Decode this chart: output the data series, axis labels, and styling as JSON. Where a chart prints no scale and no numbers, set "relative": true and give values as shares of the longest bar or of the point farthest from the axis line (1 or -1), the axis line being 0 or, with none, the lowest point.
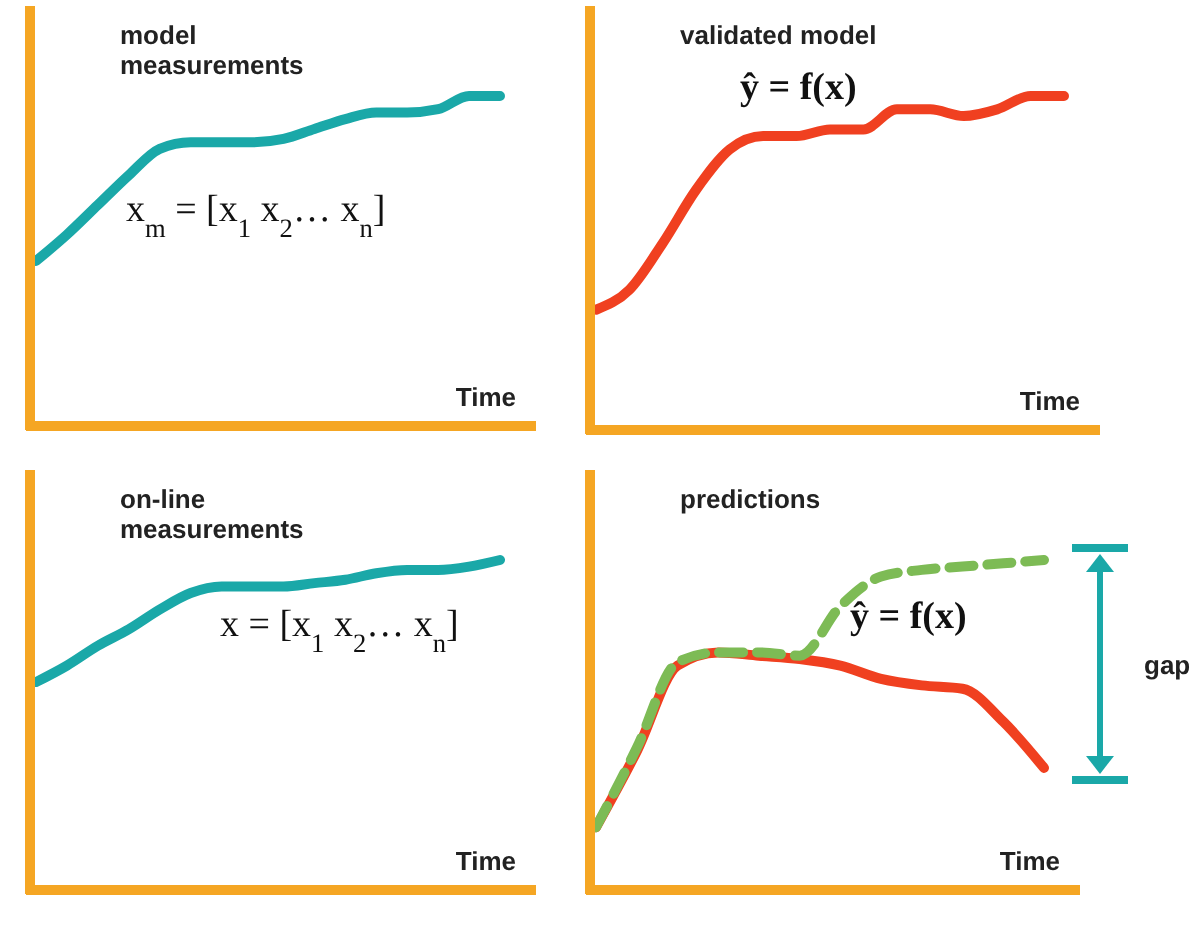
{
  "chart_data": [
    {
      "type": "line",
      "title": "model measurements",
      "xlabel": "Time",
      "relative": true,
      "categories": [
        null,
        null,
        null,
        null,
        null,
        null,
        null,
        null,
        null,
        null,
        null,
        null,
        null,
        null,
        null,
        null
      ],
      "series": [
        {
          "color": "#1aa8a8",
          "line_style": "solid",
          "values": [
            0.5,
            0.58,
            0.67,
            0.76,
            0.84,
            0.86,
            0.86,
            0.86,
            0.87,
            0.9,
            0.93,
            0.95,
            0.95,
            0.96,
            1,
            1
          ]
        }
      ],
      "annotations": [
        "x$_{m}$ = [x$_{1}$  x$_{2}$… x$_{n}$]"
      ]
    },
    {
      "type": "line",
      "title": "validated model",
      "xlabel": "Time",
      "relative": true,
      "categories": [
        null,
        null,
        null,
        null,
        null,
        null,
        null,
        null,
        null,
        null,
        null,
        null,
        null,
        null,
        null
      ],
      "series": [
        {
          "color": "#f04020",
          "line_style": "solid",
          "values": [
            0.36,
            0.42,
            0.56,
            0.72,
            0.84,
            0.88,
            0.88,
            0.9,
            0.9,
            0.96,
            0.96,
            0.94,
            0.96,
            1,
            1
          ]
        }
      ],
      "annotations": [
        "ŷ = f(x)"
      ]
    },
    {
      "type": "line",
      "title": "on-line measurements",
      "xlabel": "Time",
      "relative": true,
      "categories": [
        null,
        null,
        null,
        null,
        null,
        null,
        null,
        null,
        null,
        null,
        null,
        null,
        null,
        null,
        null,
        null
      ],
      "series": [
        {
          "color": "#1aa8a8",
          "line_style": "solid",
          "values": [
            0.63,
            0.68,
            0.74,
            0.79,
            0.85,
            0.9,
            0.92,
            0.92,
            0.92,
            0.93,
            0.94,
            0.96,
            0.97,
            0.97,
            0.98,
            1
          ]
        }
      ],
      "annotations": [
        "x = [x$_{1}$  x$_{2}$… x$_{n}$]"
      ]
    },
    {
      "type": "line",
      "title": "predictions",
      "xlabel": "Time",
      "relative": true,
      "categories": [
        null,
        null,
        null,
        null,
        null,
        null,
        null,
        null,
        null,
        null,
        null,
        null
      ],
      "series": [
        {
          "color": "#f04020",
          "line_style": "solid",
          "values": [
            0.19,
            0.42,
            0.68,
            0.72,
            0.71,
            0.7,
            0.68,
            0.64,
            0.62,
            0.61,
            0.51,
            0.37
          ]
        },
        {
          "color": "#7dbb55",
          "line_style": "dashed",
          "values": [
            0.19,
            0.43,
            0.69,
            0.72,
            0.72,
            0.71,
            0.86,
            0.95,
            0.97,
            0.98,
            0.99,
            1
          ]
        }
      ],
      "annotations": [
        "ŷ = f(x)",
        "gap"
      ]
    }
  ]
}
